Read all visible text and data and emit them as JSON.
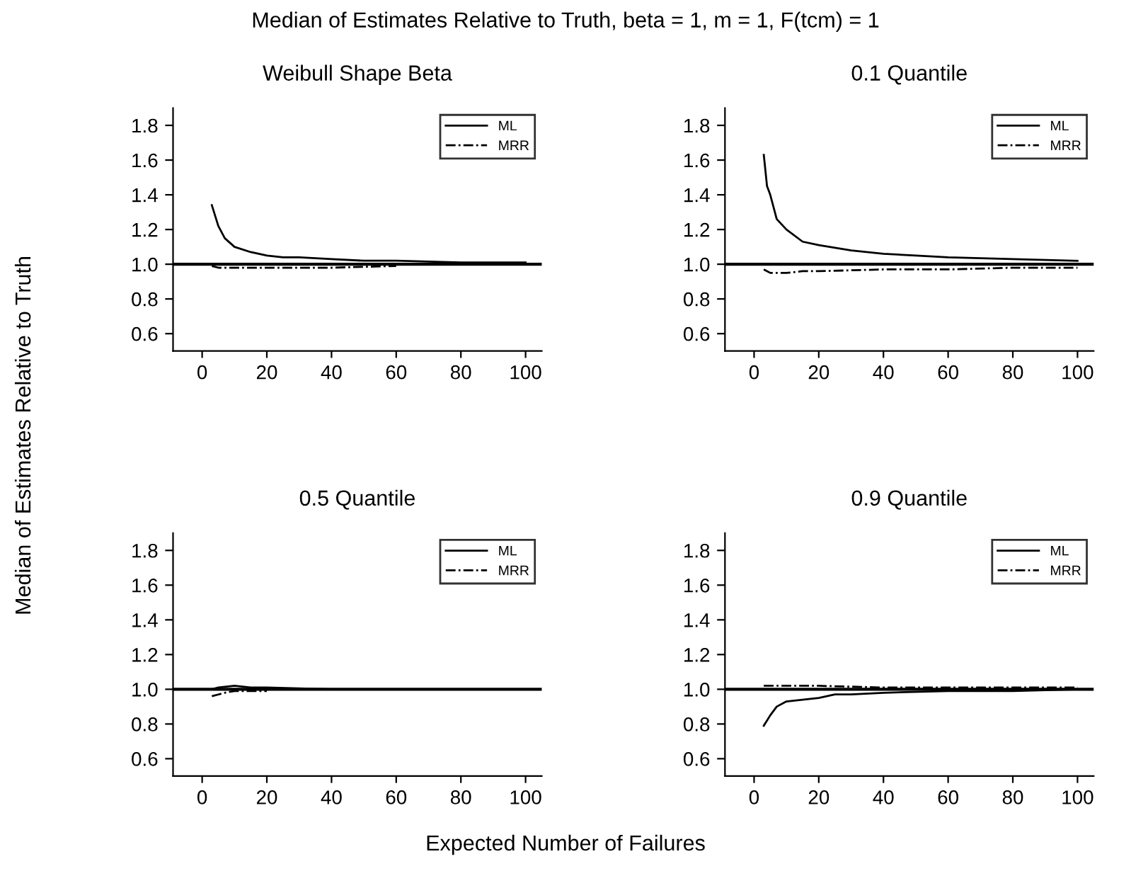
{
  "chart_data": [
    {
      "type": "line",
      "title": "Weibull Shape Beta",
      "annotations": [
        "Median of Estimates Relative to Truth, beta = 1, m = 1, F(tcm) = 1"
      ],
      "ylabel": "Median of Estimates Relative to Truth",
      "xlim": [
        -9,
        105
      ],
      "ylim": [
        0.5,
        1.9
      ],
      "xticks": [
        0,
        20,
        40,
        60,
        80,
        100
      ],
      "yticks": [
        {
          "value": 0.6,
          "label": "0.6"
        },
        {
          "value": 0.8,
          "label": "0.8"
        },
        {
          "value": 1.0,
          "label": "1.0"
        },
        {
          "value": 1.2,
          "label": "1.2"
        },
        {
          "value": 1.4,
          "label": "1.4"
        },
        {
          "value": 1.6,
          "label": "1.6"
        },
        {
          "value": 1.8,
          "label": "1.8"
        }
      ],
      "legend": "top right",
      "grid": false,
      "ref_lines": [
        {
          "axis": "y",
          "value": 1.0,
          "color": "#000000"
        }
      ],
      "series": [
        {
          "name": "ML",
          "color": "#000000",
          "line_style": "solid",
          "x": [
            3,
            5,
            7,
            10,
            15,
            20,
            25,
            30,
            40,
            50,
            60,
            80,
            100
          ],
          "values": [
            1.34,
            1.22,
            1.15,
            1.1,
            1.07,
            1.05,
            1.04,
            1.04,
            1.03,
            1.02,
            1.02,
            1.01,
            1.01
          ]
        },
        {
          "name": "MRR",
          "color": "#000000",
          "line_style": "dashdot",
          "x": [
            3,
            5,
            10,
            20,
            40,
            60
          ],
          "values": [
            0.99,
            0.98,
            0.98,
            0.98,
            0.98,
            0.99
          ]
        }
      ]
    },
    {
      "type": "line",
      "title": "0.1 Quantile",
      "xlim": [
        -9,
        105
      ],
      "ylim": [
        0.5,
        1.9
      ],
      "xticks": [
        0,
        20,
        40,
        60,
        80,
        100
      ],
      "yticks": [
        {
          "value": 0.6,
          "label": "0.6"
        },
        {
          "value": 0.8,
          "label": "0.8"
        },
        {
          "value": 1.0,
          "label": "1.0"
        },
        {
          "value": 1.2,
          "label": "1.2"
        },
        {
          "value": 1.4,
          "label": "1.4"
        },
        {
          "value": 1.6,
          "label": "1.6"
        },
        {
          "value": 1.8,
          "label": "1.8"
        }
      ],
      "legend": "top right",
      "grid": false,
      "ref_lines": [
        {
          "axis": "y",
          "value": 1.0,
          "color": "#000000"
        }
      ],
      "series": [
        {
          "name": "ML",
          "color": "#000000",
          "line_style": "solid",
          "x": [
            3,
            4,
            5,
            7,
            10,
            15,
            20,
            30,
            40,
            50,
            60,
            80,
            100
          ],
          "values": [
            1.63,
            1.45,
            1.4,
            1.26,
            1.2,
            1.13,
            1.11,
            1.08,
            1.06,
            1.05,
            1.04,
            1.03,
            1.02
          ]
        },
        {
          "name": "MRR",
          "color": "#000000",
          "line_style": "dashdot",
          "x": [
            3,
            5,
            10,
            15,
            20,
            40,
            60,
            80,
            100
          ],
          "values": [
            0.97,
            0.95,
            0.95,
            0.96,
            0.96,
            0.97,
            0.97,
            0.98,
            0.98
          ]
        }
      ]
    },
    {
      "type": "line",
      "title": "0.5 Quantile",
      "xlabel": "Expected Number of Failures",
      "xlim": [
        -9,
        105
      ],
      "ylim": [
        0.5,
        1.9
      ],
      "xticks": [
        0,
        20,
        40,
        60,
        80,
        100
      ],
      "yticks": [
        {
          "value": 0.6,
          "label": "0.6"
        },
        {
          "value": 0.8,
          "label": "0.8"
        },
        {
          "value": 1.0,
          "label": "1.0"
        },
        {
          "value": 1.2,
          "label": "1.2"
        },
        {
          "value": 1.4,
          "label": "1.4"
        },
        {
          "value": 1.6,
          "label": "1.6"
        },
        {
          "value": 1.8,
          "label": "1.8"
        }
      ],
      "legend": "top right",
      "grid": false,
      "ref_lines": [
        {
          "axis": "y",
          "value": 1.0,
          "color": "#000000"
        }
      ],
      "series": [
        {
          "name": "ML",
          "color": "#000000",
          "line_style": "solid",
          "x": [
            3,
            5,
            10,
            15,
            20,
            40,
            60,
            80,
            100
          ],
          "values": [
            1.0,
            1.01,
            1.02,
            1.01,
            1.01,
            1.0,
            1.0,
            1.0,
            1.0
          ]
        },
        {
          "name": "MRR",
          "color": "#000000",
          "line_style": "dashdot",
          "x": [
            3,
            5,
            7,
            10,
            15,
            20
          ],
          "values": [
            0.96,
            0.97,
            0.98,
            0.99,
            0.99,
            0.99
          ]
        }
      ]
    },
    {
      "type": "line",
      "title": "0.9 Quantile",
      "xlim": [
        -9,
        105
      ],
      "ylim": [
        0.5,
        1.9
      ],
      "xticks": [
        0,
        20,
        40,
        60,
        80,
        100
      ],
      "yticks": [
        {
          "value": 0.6,
          "label": "0.6"
        },
        {
          "value": 0.8,
          "label": "0.8"
        },
        {
          "value": 1.0,
          "label": "1.0"
        },
        {
          "value": 1.2,
          "label": "1.2"
        },
        {
          "value": 1.4,
          "label": "1.4"
        },
        {
          "value": 1.6,
          "label": "1.6"
        },
        {
          "value": 1.8,
          "label": "1.8"
        }
      ],
      "legend": "top right",
      "grid": false,
      "ref_lines": [
        {
          "axis": "y",
          "value": 1.0,
          "color": "#000000"
        }
      ],
      "series": [
        {
          "name": "ML",
          "color": "#000000",
          "line_style": "solid",
          "x": [
            3,
            5,
            7,
            10,
            15,
            20,
            25,
            30,
            40,
            60,
            80,
            100
          ],
          "values": [
            0.79,
            0.85,
            0.9,
            0.93,
            0.94,
            0.95,
            0.97,
            0.97,
            0.98,
            0.99,
            0.99,
            1.0
          ]
        },
        {
          "name": "MRR",
          "color": "#000000",
          "line_style": "dashdot",
          "x": [
            3,
            5,
            10,
            20,
            40,
            60,
            80,
            100
          ],
          "values": [
            1.02,
            1.02,
            1.02,
            1.02,
            1.01,
            1.01,
            1.01,
            1.01
          ]
        }
      ]
    }
  ]
}
